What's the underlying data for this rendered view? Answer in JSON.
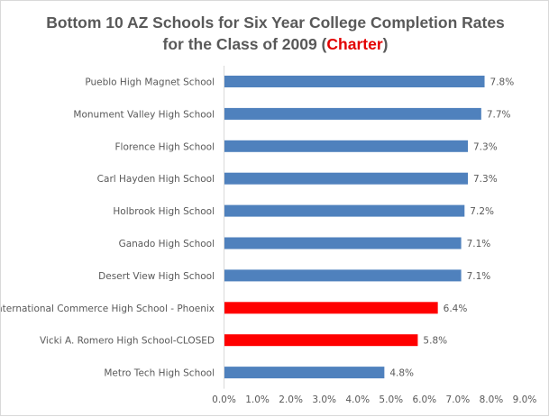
{
  "chart_data": {
    "type": "bar",
    "orientation": "horizontal",
    "title": {
      "line1": "Bottom 10 AZ Schools for Six Year College Completion Rates",
      "line2_prefix": "for the Class of 2009 (",
      "line2_accent": "Charter",
      "line2_suffix": ")"
    },
    "xlabel": "",
    "ylabel": "",
    "xlim": [
      0,
      9
    ],
    "x_ticks": [
      0,
      1,
      2,
      3,
      4,
      5,
      6,
      7,
      8,
      9
    ],
    "x_tick_labels": [
      "0.0%",
      "1.0%",
      "2.0%",
      "3.0%",
      "4.0%",
      "5.0%",
      "6.0%",
      "7.0%",
      "8.0%",
      "9.0%"
    ],
    "grid": false,
    "legend": "none",
    "categories": [
      "Pueblo High Magnet School",
      "Monument Valley High School",
      "Florence High School",
      "Carl Hayden High School",
      "Holbrook High School",
      "Ganado High School",
      "Desert View High School",
      "International Commerce High School - Phoenix",
      "Vicki A. Romero High School-CLOSED",
      "Metro Tech High School"
    ],
    "values": [
      7.8,
      7.7,
      7.3,
      7.3,
      7.2,
      7.1,
      7.1,
      6.4,
      5.8,
      4.8
    ],
    "value_labels": [
      "7.8%",
      "7.7%",
      "7.3%",
      "7.3%",
      "7.2%",
      "7.1%",
      "7.1%",
      "6.4%",
      "5.8%",
      "4.8%"
    ],
    "highlight": [
      false,
      false,
      false,
      false,
      false,
      false,
      false,
      true,
      true,
      false
    ],
    "colors": {
      "default_bar": "#4f81bd",
      "highlight_bar": "#ff0000",
      "title_accent": "#e30000",
      "text": "#595959",
      "axis": "#d9d9d9"
    }
  }
}
